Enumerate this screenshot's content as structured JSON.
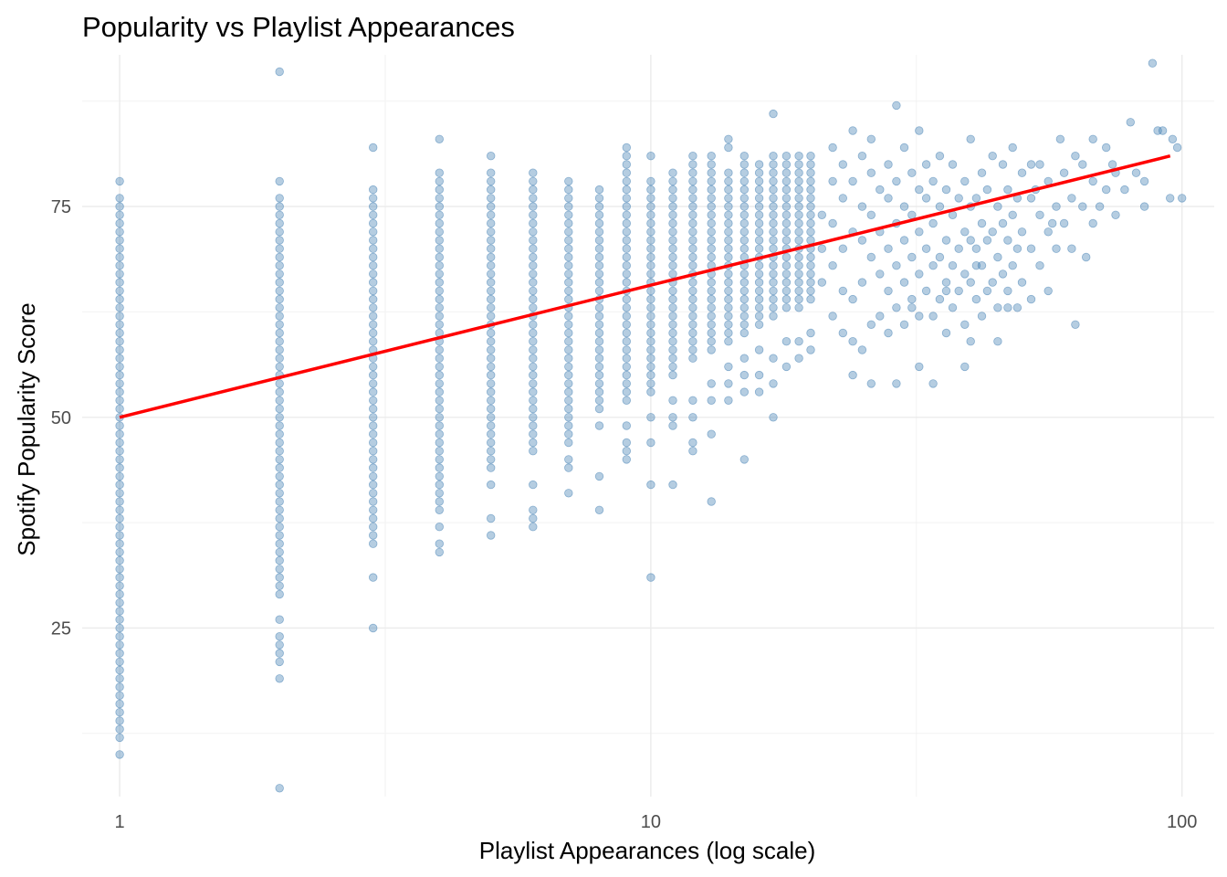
{
  "chart_data": {
    "type": "scatter",
    "title": "Popularity vs Playlist Appearances",
    "xlabel": "Playlist Appearances (log scale)",
    "ylabel": "Spotify Popularity Score",
    "x_scale": "log10",
    "xlim": [
      0.85,
      115
    ],
    "ylim": [
      5,
      93
    ],
    "x_ticks": [
      1,
      10,
      100
    ],
    "x_tick_labels": [
      "1",
      "10",
      "100"
    ],
    "y_ticks": [
      25,
      50,
      75
    ],
    "y_tick_labels": [
      "25",
      "50",
      "75"
    ],
    "grid": true,
    "legend": "none",
    "colors": {
      "points": "#4682b4",
      "trend": "#ff0000"
    },
    "point_alpha": 0.4,
    "columns": [
      {
        "x": 1,
        "y_range": [
          13,
          74
        ],
        "extra": [
          10,
          12,
          75,
          76,
          78
        ]
      },
      {
        "x": 2,
        "y_range": [
          29,
          74
        ],
        "extra": [
          6,
          19,
          21,
          22,
          23,
          24,
          26,
          75,
          76,
          78,
          91
        ]
      },
      {
        "x": 3,
        "y_range": [
          38,
          73
        ],
        "extra": [
          25,
          31,
          35,
          36,
          37,
          74,
          75,
          76,
          77,
          82
        ]
      },
      {
        "x": 4,
        "y_range": [
          39,
          74
        ],
        "extra": [
          34,
          35,
          37,
          75,
          76,
          77,
          78,
          79,
          83
        ]
      },
      {
        "x": 5,
        "y_range": [
          44,
          75
        ],
        "extra": [
          36,
          38,
          42,
          76,
          77,
          78,
          79,
          81
        ]
      },
      {
        "x": 6,
        "y_range": [
          46,
          76
        ],
        "extra": [
          37,
          38,
          39,
          42,
          77,
          78,
          79
        ]
      },
      {
        "x": 7,
        "y_range": [
          48,
          76
        ],
        "extra": [
          41,
          44,
          45,
          47,
          77,
          78
        ]
      },
      {
        "x": 8,
        "y_range": [
          51,
          75
        ],
        "extra": [
          39,
          43,
          49,
          76,
          77
        ]
      },
      {
        "x": 9,
        "y_range": [
          52,
          76
        ],
        "extra": [
          45,
          46,
          47,
          49,
          77,
          78,
          79,
          80,
          81,
          82
        ]
      },
      {
        "x": 10,
        "y_range": [
          53,
          76
        ],
        "extra": [
          31,
          42,
          47,
          50,
          77,
          78,
          81
        ]
      },
      {
        "x": 11,
        "y_range": [
          55,
          76
        ],
        "extra": [
          42,
          49,
          50,
          52,
          77,
          78,
          79
        ]
      },
      {
        "x": 12,
        "y_range": [
          57,
          77
        ],
        "extra": [
          46,
          47,
          50,
          52,
          78,
          79,
          80,
          81
        ]
      },
      {
        "x": 13,
        "y_range": [
          58,
          77
        ],
        "extra": [
          40,
          48,
          52,
          54,
          78,
          79,
          80,
          81
        ]
      },
      {
        "x": 14,
        "y_range": [
          59,
          77
        ],
        "extra": [
          52,
          54,
          56,
          78,
          79,
          82,
          83
        ]
      },
      {
        "x": 15,
        "y_range": [
          60,
          77
        ],
        "extra": [
          45,
          53,
          55,
          57,
          78,
          79,
          80,
          81
        ]
      },
      {
        "x": 16,
        "y_range": [
          61,
          77
        ],
        "extra": [
          53,
          55,
          58,
          78,
          79,
          80
        ]
      },
      {
        "x": 17,
        "y_range": [
          62,
          78
        ],
        "extra": [
          50,
          54,
          57,
          79,
          80,
          81,
          86
        ]
      },
      {
        "x": 18,
        "y_range": [
          63,
          78
        ],
        "extra": [
          56,
          59,
          79,
          80,
          81
        ]
      },
      {
        "x": 19,
        "y_range": [
          63,
          78
        ],
        "extra": [
          57,
          59,
          79,
          80,
          81
        ]
      },
      {
        "x": 20,
        "y_range": [
          64,
          78
        ],
        "extra": [
          58,
          60,
          79,
          80,
          81
        ]
      }
    ],
    "cloud": [
      [
        21,
        66
      ],
      [
        21,
        70
      ],
      [
        21,
        74
      ],
      [
        22,
        62
      ],
      [
        22,
        68
      ],
      [
        22,
        73
      ],
      [
        22,
        78
      ],
      [
        22,
        82
      ],
      [
        23,
        60
      ],
      [
        23,
        65
      ],
      [
        23,
        70
      ],
      [
        23,
        76
      ],
      [
        23,
        80
      ],
      [
        24,
        55
      ],
      [
        24,
        64
      ],
      [
        24,
        72
      ],
      [
        24,
        78
      ],
      [
        24,
        84
      ],
      [
        25,
        58
      ],
      [
        25,
        66
      ],
      [
        25,
        71
      ],
      [
        25,
        75
      ],
      [
        25,
        81
      ],
      [
        26,
        61
      ],
      [
        26,
        69
      ],
      [
        26,
        74
      ],
      [
        26,
        79
      ],
      [
        26,
        83
      ],
      [
        27,
        62
      ],
      [
        27,
        67
      ],
      [
        27,
        72
      ],
      [
        27,
        77
      ],
      [
        28,
        60
      ],
      [
        28,
        65
      ],
      [
        28,
        70
      ],
      [
        28,
        76
      ],
      [
        28,
        80
      ],
      [
        29,
        54
      ],
      [
        29,
        63
      ],
      [
        29,
        68
      ],
      [
        29,
        73
      ],
      [
        29,
        78
      ],
      [
        29,
        87
      ],
      [
        30,
        61
      ],
      [
        30,
        66
      ],
      [
        30,
        71
      ],
      [
        30,
        75
      ],
      [
        30,
        82
      ],
      [
        31,
        64
      ],
      [
        31,
        69
      ],
      [
        31,
        74
      ],
      [
        31,
        79
      ],
      [
        32,
        56
      ],
      [
        32,
        62
      ],
      [
        32,
        67
      ],
      [
        32,
        72
      ],
      [
        32,
        77
      ],
      [
        32,
        84
      ],
      [
        33,
        65
      ],
      [
        33,
        70
      ],
      [
        33,
        76
      ],
      [
        33,
        80
      ],
      [
        34,
        54
      ],
      [
        34,
        62
      ],
      [
        34,
        68
      ],
      [
        34,
        73
      ],
      [
        34,
        78
      ],
      [
        35,
        64
      ],
      [
        35,
        69
      ],
      [
        35,
        75
      ],
      [
        35,
        81
      ],
      [
        36,
        60
      ],
      [
        36,
        66
      ],
      [
        36,
        71
      ],
      [
        36,
        77
      ],
      [
        37,
        63
      ],
      [
        37,
        68
      ],
      [
        37,
        74
      ],
      [
        37,
        80
      ],
      [
        38,
        65
      ],
      [
        38,
        70
      ],
      [
        38,
        76
      ],
      [
        39,
        61
      ],
      [
        39,
        67
      ],
      [
        39,
        72
      ],
      [
        39,
        78
      ],
      [
        40,
        59
      ],
      [
        40,
        66
      ],
      [
        40,
        71
      ],
      [
        40,
        75
      ],
      [
        40,
        83
      ],
      [
        41,
        64
      ],
      [
        41,
        70
      ],
      [
        41,
        76
      ],
      [
        42,
        62
      ],
      [
        42,
        68
      ],
      [
        42,
        73
      ],
      [
        42,
        79
      ],
      [
        43,
        65
      ],
      [
        43,
        71
      ],
      [
        43,
        77
      ],
      [
        44,
        66
      ],
      [
        44,
        72
      ],
      [
        44,
        81
      ],
      [
        45,
        63
      ],
      [
        45,
        69
      ],
      [
        45,
        75
      ],
      [
        46,
        67
      ],
      [
        46,
        73
      ],
      [
        46,
        80
      ],
      [
        47,
        65
      ],
      [
        47,
        71
      ],
      [
        47,
        77
      ],
      [
        48,
        68
      ],
      [
        48,
        74
      ],
      [
        48,
        82
      ],
      [
        49,
        63
      ],
      [
        49,
        70
      ],
      [
        49,
        76
      ],
      [
        50,
        66
      ],
      [
        50,
        72
      ],
      [
        50,
        79
      ],
      [
        52,
        64
      ],
      [
        52,
        70
      ],
      [
        52,
        76
      ],
      [
        54,
        68
      ],
      [
        54,
        74
      ],
      [
        54,
        80
      ],
      [
        56,
        65
      ],
      [
        56,
        72
      ],
      [
        56,
        78
      ],
      [
        58,
        70
      ],
      [
        58,
        75
      ],
      [
        60,
        73
      ],
      [
        60,
        79
      ],
      [
        62,
        70
      ],
      [
        62,
        76
      ],
      [
        63,
        61
      ],
      [
        65,
        75
      ],
      [
        65,
        80
      ],
      [
        68,
        73
      ],
      [
        68,
        78
      ],
      [
        70,
        75
      ],
      [
        72,
        77
      ],
      [
        72,
        82
      ],
      [
        75,
        74
      ],
      [
        75,
        79
      ],
      [
        78,
        77
      ],
      [
        80,
        85
      ],
      [
        82,
        79
      ],
      [
        85,
        75
      ],
      [
        88,
        92
      ],
      [
        90,
        84
      ],
      [
        95,
        76
      ],
      [
        98,
        82
      ],
      [
        100,
        76
      ],
      [
        52,
        80
      ],
      [
        57,
        73
      ],
      [
        63,
        81
      ],
      [
        68,
        83
      ],
      [
        74,
        80
      ],
      [
        85,
        78
      ],
      [
        92,
        84
      ],
      [
        96,
        83
      ],
      [
        39,
        56
      ],
      [
        45,
        59
      ],
      [
        47,
        63
      ],
      [
        31,
        63
      ],
      [
        26,
        54
      ],
      [
        24,
        59
      ],
      [
        36,
        65
      ],
      [
        41,
        68
      ],
      [
        53,
        77
      ],
      [
        59,
        83
      ],
      [
        66,
        69
      ]
    ],
    "trend_line": {
      "x": [
        1,
        95
      ],
      "y": [
        50,
        81
      ]
    }
  }
}
